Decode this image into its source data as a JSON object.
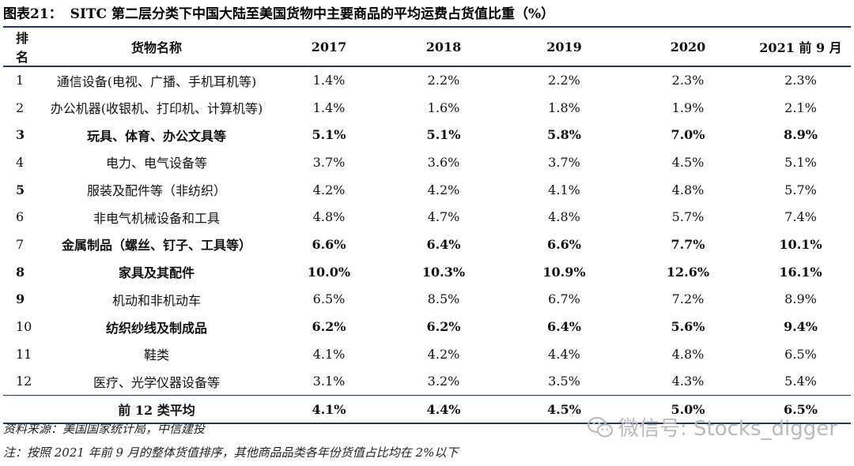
{
  "title": {
    "label": "图表21：",
    "text": "SITC 第二层分类下中国大陆至美国货物中主要商品的平均运费占货值比重（%）"
  },
  "table": {
    "headers": [
      "排名",
      "货物名称",
      "2017",
      "2018",
      "2019",
      "2020",
      "2021 前 9 月"
    ],
    "rows": [
      {
        "rank": "1",
        "name": "通信设备(电视、广播、手机耳机等)",
        "v2017": "1.4%",
        "v2018": "2.2%",
        "v2019": "2.2%",
        "v2020": "2.3%",
        "v2021": "2.3%"
      },
      {
        "rank": "2",
        "name": "办公机器(收银机、打印机、计算机等)",
        "v2017": "1.4%",
        "v2018": "1.6%",
        "v2019": "1.8%",
        "v2020": "1.9%",
        "v2021": "2.1%"
      },
      {
        "rank": "3",
        "name": "玩具、体育、办公文具等",
        "v2017": "5.1%",
        "v2018": "5.1%",
        "v2019": "5.8%",
        "v2020": "7.0%",
        "v2021": "8.9%"
      },
      {
        "rank": "4",
        "name": "电力、电气设备等",
        "v2017": "3.7%",
        "v2018": "3.6%",
        "v2019": "3.7%",
        "v2020": "4.5%",
        "v2021": "5.1%"
      },
      {
        "rank": "5",
        "name": "服装及配件等（非纺织）",
        "v2017": "4.2%",
        "v2018": "4.2%",
        "v2019": "4.1%",
        "v2020": "4.8%",
        "v2021": "5.7%"
      },
      {
        "rank": "6",
        "name": "非电气机械设备和工具",
        "v2017": "4.8%",
        "v2018": "4.7%",
        "v2019": "4.8%",
        "v2020": "5.7%",
        "v2021": "7.4%"
      },
      {
        "rank": "7",
        "name": "金属制品（螺丝、钉子、工具等）",
        "v2017": "6.6%",
        "v2018": "6.4%",
        "v2019": "6.6%",
        "v2020": "7.7%",
        "v2021": "10.1%"
      },
      {
        "rank": "8",
        "name": "家具及其配件",
        "v2017": "10.0%",
        "v2018": "10.3%",
        "v2019": "10.9%",
        "v2020": "12.6%",
        "v2021": "16.1%"
      },
      {
        "rank": "9",
        "name": "机动和非机动车",
        "v2017": "6.5%",
        "v2018": "8.5%",
        "v2019": "6.7%",
        "v2020": "7.2%",
        "v2021": "8.9%"
      },
      {
        "rank": "10",
        "name": "纺织纱线及制成品",
        "v2017": "6.2%",
        "v2018": "6.2%",
        "v2019": "6.4%",
        "v2020": "5.6%",
        "v2021": "9.4%"
      },
      {
        "rank": "11",
        "name": "鞋类",
        "v2017": "4.1%",
        "v2018": "4.2%",
        "v2019": "4.4%",
        "v2020": "4.8%",
        "v2021": "6.5%"
      },
      {
        "rank": "12",
        "name": "医疗、光学仪器设备等",
        "v2017": "3.1%",
        "v2018": "3.2%",
        "v2019": "3.5%",
        "v2020": "4.3%",
        "v2021": "5.4%"
      }
    ],
    "footer": {
      "name": "前 12 类平均",
      "v2017": "4.1%",
      "v2018": "4.4%",
      "v2019": "4.5%",
      "v2020": "5.0%",
      "v2021": "6.5%"
    }
  },
  "source": "资料来源：美国国家统计局，中信建投",
  "note": "注：按照 2021 年前 9 月的整体货值排序，其他商品品类各年份货值占比均在 2%以下",
  "watermark": "微信号: Stocks_digger"
}
